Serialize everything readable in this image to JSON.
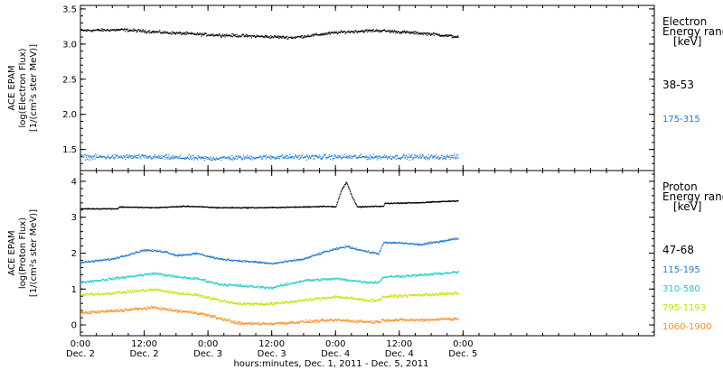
{
  "chart_data": {
    "type": "scatter",
    "x_axis": {
      "title": "hours:minutes, Dec.  1, 2011 - Dec.  5, 2011",
      "range": [
        0,
        108
      ],
      "unit": "hours since Dec. 2 0:00",
      "ticks": [
        {
          "x": 0,
          "time": "0:00",
          "day": "Dec. 2"
        },
        {
          "x": 12,
          "time": "12:00",
          "day": "Dec. 2"
        },
        {
          "x": 24,
          "time": "0:00",
          "day": "Dec. 3"
        },
        {
          "x": 36,
          "time": "12:00",
          "day": "Dec. 3"
        },
        {
          "x": 48,
          "time": "0:00",
          "day": "Dec. 4"
        },
        {
          "x": 60,
          "time": "12:00",
          "day": "Dec. 4"
        },
        {
          "x": 72,
          "time": "0:00",
          "day": "Dec. 5"
        }
      ],
      "minor_step": 3
    },
    "panels": [
      {
        "id": "electron",
        "ylabel": [
          "ACE EPAM",
          "log(Electron Flux)",
          "[1/(cm²s ster MeV)]"
        ],
        "ylim": [
          1.2,
          3.55
        ],
        "yticks": [
          "1.5",
          "2.0",
          "2.5",
          "3.0",
          "3.5"
        ],
        "legend_title": [
          "Electron",
          "Energy ranges",
          "[keV]"
        ],
        "series": [
          {
            "name": "38-53",
            "color": "#000000",
            "profile": [
              [
                0,
                3.2
              ],
              [
                8,
                3.21
              ],
              [
                16,
                3.17
              ],
              [
                24,
                3.14
              ],
              [
                32,
                3.12
              ],
              [
                40,
                3.1
              ],
              [
                48,
                3.17
              ],
              [
                52,
                3.19
              ],
              [
                56,
                3.2
              ],
              [
                60,
                3.18
              ],
              [
                66,
                3.15
              ],
              [
                72,
                3.1
              ]
            ],
            "noise": 0.03
          },
          {
            "name": "175-315",
            "color": "#1e7bd6",
            "profile": [
              [
                0,
                1.4
              ],
              [
                12,
                1.4
              ],
              [
                24,
                1.38
              ],
              [
                36,
                1.4
              ],
              [
                48,
                1.4
              ],
              [
                60,
                1.4
              ],
              [
                72,
                1.4
              ]
            ],
            "noise": 0.05
          }
        ]
      },
      {
        "id": "proton",
        "ylabel": [
          "ACE EPAM",
          "log(Proton Flux)",
          "[1/(cm²s ster MeV)]"
        ],
        "ylim": [
          -0.3,
          4.3
        ],
        "yticks": [
          "0",
          "1",
          "2",
          "3",
          "4"
        ],
        "legend_title": [
          "Proton",
          "Energy ranges",
          "[keV]"
        ],
        "series": [
          {
            "name": "47-68",
            "color": "#000000",
            "profile": [
              [
                0,
                3.25
              ],
              [
                7,
                3.25
              ],
              [
                7.2,
                3.3
              ],
              [
                14,
                3.28
              ],
              [
                20,
                3.32
              ],
              [
                26,
                3.28
              ],
              [
                34,
                3.28
              ],
              [
                42,
                3.3
              ],
              [
                46,
                3.32
              ],
              [
                48,
                3.3
              ],
              [
                49,
                3.75
              ],
              [
                50,
                4.0
              ],
              [
                51,
                3.6
              ],
              [
                52,
                3.3
              ],
              [
                57,
                3.32
              ],
              [
                57.2,
                3.4
              ],
              [
                64,
                3.42
              ],
              [
                72,
                3.48
              ]
            ],
            "noise": 0.02
          },
          {
            "name": "115-195",
            "color": "#1e7bd6",
            "profile": [
              [
                0,
                1.75
              ],
              [
                6,
                1.85
              ],
              [
                12,
                2.1
              ],
              [
                16,
                2.05
              ],
              [
                18,
                1.95
              ],
              [
                22,
                2.0
              ],
              [
                26,
                1.85
              ],
              [
                30,
                1.8
              ],
              [
                34,
                1.75
              ],
              [
                36,
                1.72
              ],
              [
                42,
                1.85
              ],
              [
                46,
                2.05
              ],
              [
                50,
                2.2
              ],
              [
                54,
                2.05
              ],
              [
                56,
                2.0
              ],
              [
                57,
                2.3
              ],
              [
                60,
                2.3
              ],
              [
                64,
                2.25
              ],
              [
                68,
                2.35
              ],
              [
                72,
                2.45
              ]
            ],
            "noise": 0.04
          },
          {
            "name": "310-580",
            "color": "#22cccc",
            "profile": [
              [
                0,
                1.2
              ],
              [
                6,
                1.3
              ],
              [
                14,
                1.45
              ],
              [
                18,
                1.35
              ],
              [
                22,
                1.3
              ],
              [
                26,
                1.15
              ],
              [
                30,
                1.1
              ],
              [
                36,
                1.05
              ],
              [
                42,
                1.25
              ],
              [
                48,
                1.3
              ],
              [
                54,
                1.2
              ],
              [
                56,
                1.2
              ],
              [
                57,
                1.35
              ],
              [
                64,
                1.4
              ],
              [
                72,
                1.5
              ]
            ],
            "noise": 0.05
          },
          {
            "name": "795-1193",
            "color": "#c8e000",
            "profile": [
              [
                0,
                0.85
              ],
              [
                6,
                0.9
              ],
              [
                14,
                1.0
              ],
              [
                18,
                0.9
              ],
              [
                22,
                0.85
              ],
              [
                26,
                0.7
              ],
              [
                30,
                0.6
              ],
              [
                36,
                0.6
              ],
              [
                42,
                0.7
              ],
              [
                48,
                0.8
              ],
              [
                54,
                0.7
              ],
              [
                56,
                0.7
              ],
              [
                57,
                0.8
              ],
              [
                64,
                0.85
              ],
              [
                72,
                0.9
              ]
            ],
            "noise": 0.06
          },
          {
            "name": "1060-1900",
            "color": "#ff8c1a",
            "profile": [
              [
                0,
                0.35
              ],
              [
                6,
                0.4
              ],
              [
                14,
                0.5
              ],
              [
                18,
                0.4
              ],
              [
                22,
                0.35
              ],
              [
                26,
                0.2
              ],
              [
                30,
                0.05
              ],
              [
                36,
                0.05
              ],
              [
                42,
                0.1
              ],
              [
                48,
                0.15
              ],
              [
                54,
                0.1
              ],
              [
                56,
                0.1
              ],
              [
                57,
                0.15
              ],
              [
                64,
                0.15
              ],
              [
                72,
                0.2
              ]
            ],
            "noise": 0.06
          }
        ]
      }
    ],
    "data_range_hours": [
      0,
      71
    ],
    "grid": false,
    "legend_position": "right"
  }
}
